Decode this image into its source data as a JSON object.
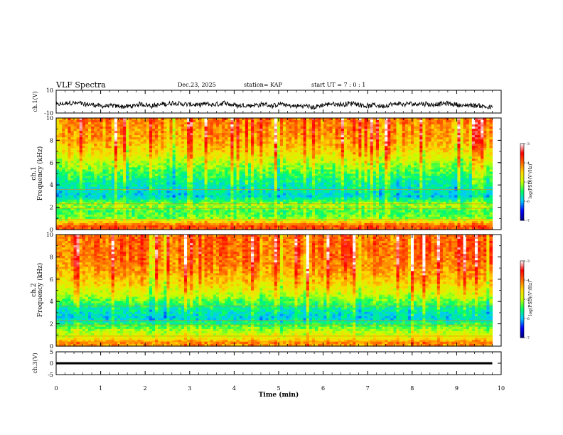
{
  "header": {
    "title": "VLF Spectra",
    "date": "Dec.23, 2025",
    "station": "station= KAP",
    "start_ut": "start  UT =   7 : 0  : 1"
  },
  "colors": {
    "axis": "#000000",
    "colormap": [
      "#00007f",
      "#0000ff",
      "#00c8ff",
      "#00ff64",
      "#c8ff00",
      "#ffd700",
      "#ff6400",
      "#ff0000",
      "#ffffff"
    ]
  },
  "chart_data": [
    {
      "id": "ch1-waveform",
      "type": "line",
      "ylabel": "ch.1(V)",
      "ylim": [
        -10,
        10
      ],
      "yticks": [
        "10",
        "-10"
      ],
      "xlim": [
        0,
        10
      ],
      "x_extent_min": 9.8,
      "mean": -3,
      "amplitude": 4,
      "description_series": "noisy waveform around -3 V, range about -10 to 5 V"
    },
    {
      "id": "ch1-spectrogram",
      "type": "heatmap",
      "ylabel": "Frequency  (kHz)",
      "ylabel_channel": "ch.1",
      "ylim": [
        0,
        10
      ],
      "yticks": [
        "0",
        "2",
        "4",
        "6",
        "8",
        "10"
      ],
      "xlim": [
        0,
        10
      ],
      "x_extent_min": 9.8,
      "colorbar": {
        "label": "log(PSD)(V²/Hz)",
        "range": [
          -7,
          -3
        ],
        "ticks": [
          "-3",
          "-4",
          "-5",
          "-6",
          "-7"
        ]
      },
      "profile_log_psd": [
        {
          "f_khz": 0.3,
          "v": -3.9
        },
        {
          "f_khz": 0.6,
          "v": -4.4
        },
        {
          "f_khz": 1.0,
          "v": -5.2
        },
        {
          "f_khz": 1.6,
          "v": -5.4
        },
        {
          "f_khz": 2.2,
          "v": -5.1
        },
        {
          "f_khz": 3.0,
          "v": -5.9
        },
        {
          "f_khz": 4.0,
          "v": -5.7
        },
        {
          "f_khz": 5.0,
          "v": -5.4
        },
        {
          "f_khz": 6.0,
          "v": -5.0
        },
        {
          "f_khz": 7.0,
          "v": -4.6
        },
        {
          "f_khz": 8.0,
          "v": -4.3
        },
        {
          "f_khz": 9.0,
          "v": -4.2
        },
        {
          "f_khz": 10.0,
          "v": -4.1
        }
      ]
    },
    {
      "id": "ch2-spectrogram",
      "type": "heatmap",
      "ylabel": "Frequency  (kHz)",
      "ylabel_channel": "ch.2",
      "ylim": [
        0,
        10
      ],
      "yticks": [
        "0",
        "2",
        "4",
        "6",
        "8",
        "10"
      ],
      "xlim": [
        0,
        10
      ],
      "x_extent_min": 9.8,
      "colorbar": {
        "label": "log(PSD)(V²/Hz)",
        "range": [
          -7,
          -3
        ],
        "ticks": [
          "-3",
          "-4",
          "-5",
          "-6",
          "-7"
        ]
      },
      "profile_log_psd": [
        {
          "f_khz": 0.3,
          "v": -4.2
        },
        {
          "f_khz": 0.8,
          "v": -4.8
        },
        {
          "f_khz": 1.5,
          "v": -5.1
        },
        {
          "f_khz": 2.5,
          "v": -5.9
        },
        {
          "f_khz": 3.5,
          "v": -5.6
        },
        {
          "f_khz": 4.5,
          "v": -5.0
        },
        {
          "f_khz": 5.5,
          "v": -4.6
        },
        {
          "f_khz": 6.5,
          "v": -4.3
        },
        {
          "f_khz": 7.5,
          "v": -4.1
        },
        {
          "f_khz": 8.5,
          "v": -4.0
        },
        {
          "f_khz": 10.0,
          "v": -4.0
        }
      ]
    },
    {
      "id": "ch3-waveform",
      "type": "line",
      "ylabel": "ch.3(V)",
      "ylim": [
        -5,
        5
      ],
      "yticks": [
        "5",
        "0",
        "-5"
      ],
      "xlim": [
        0,
        10
      ],
      "x_extent_min": 9.8,
      "mean": 0,
      "amplitude": 0.3,
      "description_series": "dense oscillation near 0 V"
    }
  ],
  "xaxis": {
    "label": "Time  (min)",
    "ticks": [
      "0",
      "1",
      "2",
      "3",
      "4",
      "5",
      "6",
      "7",
      "8",
      "9",
      "10"
    ]
  }
}
